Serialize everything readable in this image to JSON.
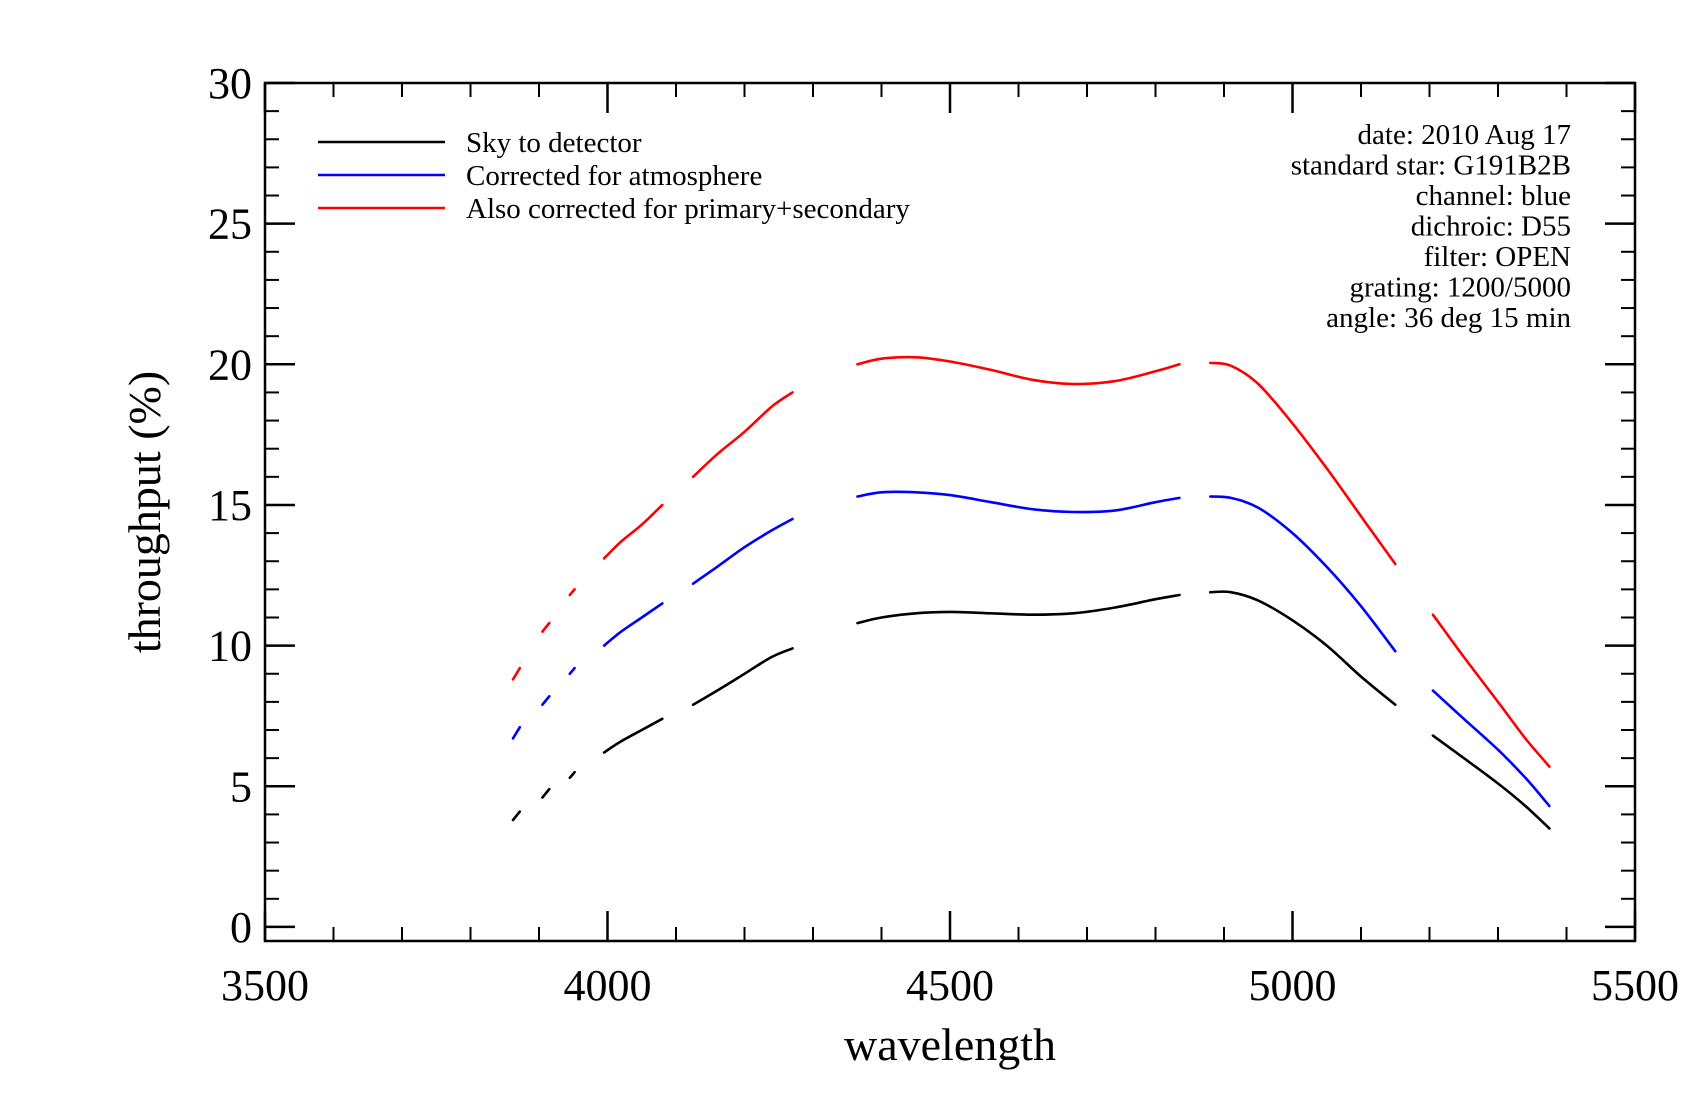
{
  "chart_data": {
    "type": "line",
    "xlabel": "wavelength",
    "ylabel": "throughput (%)",
    "xlim": [
      3500,
      5500
    ],
    "ylim": [
      -0.5,
      30
    ],
    "x_ticks": [
      3500,
      4000,
      4500,
      5000,
      5500
    ],
    "y_ticks": [
      0,
      5,
      10,
      15,
      20,
      25,
      30
    ],
    "x_minor_step": 100,
    "y_minor_step": 1,
    "grid": false,
    "legend_position": "top-left",
    "info_lines": [
      "date: 2010 Aug 17",
      "standard star: G191B2B",
      "channel: blue",
      "dichroic: D55",
      "filter: OPEN",
      "grating: 1200/5000",
      "angle: 36 deg 15 min"
    ],
    "series": [
      {
        "name": "Sky to detector",
        "color": "#000000",
        "segments": [
          [
            [
              3862,
              3.8
            ],
            [
              3872,
              4.1
            ]
          ],
          [
            [
              3905,
              4.6
            ],
            [
              3915,
              4.9
            ]
          ],
          [
            [
              3945,
              5.3
            ],
            [
              3952,
              5.5
            ]
          ],
          [
            [
              3995,
              6.2
            ],
            [
              4020,
              6.6
            ],
            [
              4050,
              7.0
            ],
            [
              4080,
              7.4
            ]
          ],
          [
            [
              4125,
              7.9
            ],
            [
              4160,
              8.4
            ],
            [
              4200,
              9.0
            ],
            [
              4240,
              9.6
            ],
            [
              4270,
              9.9
            ]
          ],
          [
            [
              4365,
              10.8
            ],
            [
              4400,
              11.0
            ],
            [
              4450,
              11.15
            ],
            [
              4500,
              11.2
            ],
            [
              4560,
              11.15
            ],
            [
              4620,
              11.1
            ],
            [
              4680,
              11.15
            ],
            [
              4740,
              11.35
            ],
            [
              4800,
              11.65
            ],
            [
              4835,
              11.8
            ]
          ],
          [
            [
              4880,
              11.9
            ],
            [
              4910,
              11.9
            ],
            [
              4950,
              11.6
            ],
            [
              5000,
              10.9
            ],
            [
              5050,
              10.0
            ],
            [
              5100,
              8.9
            ],
            [
              5150,
              7.9
            ]
          ],
          [
            [
              5205,
              6.8
            ],
            [
              5250,
              6.0
            ],
            [
              5300,
              5.1
            ],
            [
              5340,
              4.3
            ],
            [
              5375,
              3.5
            ]
          ]
        ]
      },
      {
        "name": "Corrected for atmosphere",
        "color": "#0000ff",
        "segments": [
          [
            [
              3862,
              6.7
            ],
            [
              3872,
              7.1
            ]
          ],
          [
            [
              3905,
              7.9
            ],
            [
              3915,
              8.2
            ]
          ],
          [
            [
              3945,
              9.0
            ],
            [
              3952,
              9.2
            ]
          ],
          [
            [
              3995,
              10.0
            ],
            [
              4020,
              10.5
            ],
            [
              4050,
              11.0
            ],
            [
              4080,
              11.5
            ]
          ],
          [
            [
              4125,
              12.2
            ],
            [
              4160,
              12.8
            ],
            [
              4200,
              13.5
            ],
            [
              4240,
              14.1
            ],
            [
              4270,
              14.5
            ]
          ],
          [
            [
              4365,
              15.3
            ],
            [
              4400,
              15.45
            ],
            [
              4450,
              15.45
            ],
            [
              4500,
              15.35
            ],
            [
              4560,
              15.1
            ],
            [
              4620,
              14.85
            ],
            [
              4680,
              14.75
            ],
            [
              4740,
              14.8
            ],
            [
              4800,
              15.1
            ],
            [
              4835,
              15.25
            ]
          ],
          [
            [
              4880,
              15.3
            ],
            [
              4910,
              15.25
            ],
            [
              4950,
              14.9
            ],
            [
              5000,
              14.0
            ],
            [
              5050,
              12.8
            ],
            [
              5100,
              11.4
            ],
            [
              5150,
              9.8
            ]
          ],
          [
            [
              5205,
              8.4
            ],
            [
              5250,
              7.4
            ],
            [
              5300,
              6.3
            ],
            [
              5340,
              5.3
            ],
            [
              5375,
              4.3
            ]
          ]
        ]
      },
      {
        "name": "Also corrected for primary+secondary",
        "color": "#ff0000",
        "segments": [
          [
            [
              3862,
              8.8
            ],
            [
              3872,
              9.2
            ]
          ],
          [
            [
              3905,
              10.5
            ],
            [
              3915,
              10.8
            ]
          ],
          [
            [
              3945,
              11.8
            ],
            [
              3952,
              12.0
            ]
          ],
          [
            [
              3995,
              13.1
            ],
            [
              4020,
              13.7
            ],
            [
              4050,
              14.3
            ],
            [
              4080,
              15.0
            ]
          ],
          [
            [
              4125,
              16.0
            ],
            [
              4160,
              16.8
            ],
            [
              4200,
              17.6
            ],
            [
              4240,
              18.5
            ],
            [
              4270,
              19.0
            ]
          ],
          [
            [
              4365,
              20.0
            ],
            [
              4400,
              20.2
            ],
            [
              4450,
              20.25
            ],
            [
              4500,
              20.1
            ],
            [
              4560,
              19.8
            ],
            [
              4620,
              19.45
            ],
            [
              4680,
              19.3
            ],
            [
              4740,
              19.4
            ],
            [
              4800,
              19.75
            ],
            [
              4835,
              20.0
            ]
          ],
          [
            [
              4880,
              20.05
            ],
            [
              4910,
              19.95
            ],
            [
              4950,
              19.3
            ],
            [
              5000,
              17.9
            ],
            [
              5050,
              16.3
            ],
            [
              5100,
              14.6
            ],
            [
              5150,
              12.9
            ]
          ],
          [
            [
              5205,
              11.1
            ],
            [
              5250,
              9.6
            ],
            [
              5300,
              8.0
            ],
            [
              5340,
              6.7
            ],
            [
              5375,
              5.7
            ]
          ]
        ]
      }
    ]
  }
}
